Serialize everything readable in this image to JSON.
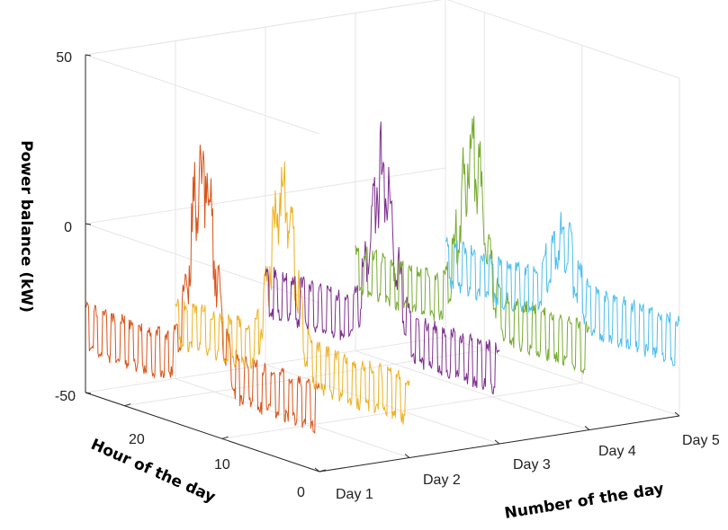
{
  "chart_data": {
    "type": "line",
    "title": "",
    "ylabel": "Power balance (kW)",
    "xlabel": "Number of the day",
    "hour_label": "Hour of the day",
    "zlim": [
      -50,
      50
    ],
    "z_ticks": [
      "-50",
      "0",
      "50"
    ],
    "hour_ticks": [
      "0",
      "10",
      "20"
    ],
    "day_ticks": [
      "Day 1",
      "Day 2",
      "Day 3",
      "Day 4",
      "Day 5"
    ],
    "grid": true,
    "series": [
      {
        "color": "#D95319",
        "day": 1,
        "baseline": -33,
        "peak": 30,
        "peak_hour": 12
      },
      {
        "color": "#EDB120",
        "day": 2,
        "baseline": -35,
        "peak": 17,
        "peak_hour": 13
      },
      {
        "color": "#7E2F8E",
        "day": 3,
        "baseline": -30,
        "peak": 20,
        "peak_hour": 12
      },
      {
        "color": "#77AC30",
        "day": 4,
        "baseline": -28,
        "peak": 22,
        "peak_hour": 12
      },
      {
        "color": "#4DBEEE",
        "day": 5,
        "baseline": -30,
        "peak": -10,
        "peak_hour": 12
      }
    ]
  }
}
